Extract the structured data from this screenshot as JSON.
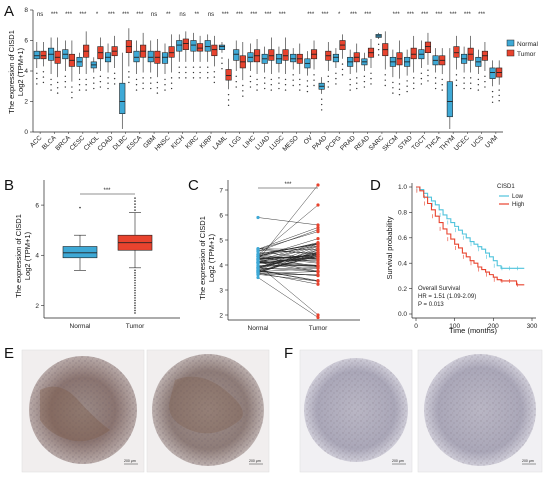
{
  "panel_labels": [
    "A",
    "B",
    "C",
    "D",
    "E",
    "F"
  ],
  "colors": {
    "normal": "#3ea9d6",
    "tumor": "#e8432e",
    "km_low": "#4fc3dc",
    "km_high": "#e8432e"
  },
  "chart_data": [
    {
      "id": "A",
      "type": "box",
      "ylabel_line1": "The expression of CISD1",
      "ylabel_line2": "Log2 (TPM+1)",
      "ylim": [
        0,
        8
      ],
      "yticks": [
        0,
        2,
        4,
        6,
        8
      ],
      "legend": [
        "Normal",
        "Tumor"
      ],
      "legend_placement": "right",
      "categories": [
        "ACC",
        "BLCA",
        "BRCA",
        "CESC",
        "CHOL",
        "COAD",
        "DLBC",
        "ESCA",
        "GBM",
        "HNSC",
        "KICH",
        "KIRC",
        "KIRP",
        "LAML",
        "LGG",
        "LIHC",
        "LUAD",
        "LUSC",
        "MESO",
        "OV",
        "PAAD",
        "PCPG",
        "PRAD",
        "READ",
        "SARC",
        "SKCM",
        "STAD",
        "TGCT",
        "THCA",
        "THYM",
        "UCEC",
        "UCS",
        "UVM"
      ],
      "significance": [
        "ns",
        "***",
        "***",
        "***",
        "*",
        "***",
        "***",
        "***",
        "ns",
        "**",
        "ns",
        "**",
        "ns",
        "***",
        "***",
        "***",
        "***",
        "***",
        "",
        "***",
        "***",
        "*",
        "***",
        "***",
        "",
        "***",
        "***",
        "***",
        "***",
        "***",
        "***",
        "***",
        ""
      ],
      "normal": [
        {
          "q1": 4.8,
          "med": 5.0,
          "q3": 5.3,
          "lo": 4.2,
          "hi": 5.9
        },
        {
          "q1": 4.7,
          "med": 5.1,
          "q3": 5.5,
          "lo": 3.8,
          "hi": 6.2
        },
        {
          "q1": 4.8,
          "med": 5.1,
          "q3": 5.4,
          "lo": 4.0,
          "hi": 6.0
        },
        {
          "q1": 4.3,
          "med": 4.6,
          "q3": 4.9,
          "lo": 3.8,
          "hi": 5.2
        },
        {
          "q1": 4.2,
          "med": 4.4,
          "q3": 4.6,
          "lo": 3.9,
          "hi": 4.9
        },
        {
          "q1": 4.6,
          "med": 4.9,
          "q3": 5.2,
          "lo": 3.9,
          "hi": 5.8
        },
        {
          "q1": 1.2,
          "med": 2.0,
          "q3": 3.2,
          "lo": 0.2,
          "hi": 5.2
        },
        {
          "q1": 4.6,
          "med": 4.9,
          "q3": 5.3,
          "lo": 3.8,
          "hi": 6.0
        },
        {
          "q1": 4.6,
          "med": 4.9,
          "q3": 5.3,
          "lo": 3.9,
          "hi": 6.0
        },
        {
          "q1": 4.5,
          "med": 4.9,
          "q3": 5.2,
          "lo": 3.8,
          "hi": 5.8
        },
        {
          "q1": 5.3,
          "med": 5.7,
          "q3": 6.0,
          "lo": 4.6,
          "hi": 6.4
        },
        {
          "q1": 5.3,
          "med": 5.7,
          "q3": 6.0,
          "lo": 4.6,
          "hi": 6.5
        },
        {
          "q1": 5.3,
          "med": 5.6,
          "q3": 6.0,
          "lo": 4.6,
          "hi": 6.4
        },
        {
          "q1": 5.4,
          "med": 5.6,
          "q3": 5.7,
          "lo": 5.2,
          "hi": 5.9
        },
        {
          "q1": 4.7,
          "med": 5.1,
          "q3": 5.4,
          "lo": 4.0,
          "hi": 6.0
        },
        {
          "q1": 4.6,
          "med": 4.9,
          "q3": 5.2,
          "lo": 4.0,
          "hi": 5.8
        },
        {
          "q1": 4.5,
          "med": 4.8,
          "q3": 5.1,
          "lo": 3.9,
          "hi": 5.6
        },
        {
          "q1": 4.5,
          "med": 4.8,
          "q3": 5.1,
          "lo": 3.9,
          "hi": 5.6
        },
        {
          "q1": 4.6,
          "med": 4.8,
          "q3": 5.1,
          "lo": 4.1,
          "hi": 5.5
        },
        {
          "q1": 4.2,
          "med": 4.5,
          "q3": 4.8,
          "lo": 3.7,
          "hi": 5.3
        },
        {
          "q1": 2.8,
          "med": 3.0,
          "q3": 3.2,
          "lo": 2.5,
          "hi": 3.6
        },
        {
          "q1": 4.6,
          "med": 4.9,
          "q3": 5.1,
          "lo": 4.2,
          "hi": 5.5
        },
        {
          "q1": 4.3,
          "med": 4.6,
          "q3": 4.9,
          "lo": 3.8,
          "hi": 5.4
        },
        {
          "q1": 4.4,
          "med": 4.6,
          "q3": 4.8,
          "lo": 4.0,
          "hi": 5.2
        },
        {
          "q1": 6.2,
          "med": 6.3,
          "q3": 6.4,
          "lo": 6.1,
          "hi": 6.5
        },
        {
          "q1": 4.3,
          "med": 4.6,
          "q3": 4.9,
          "lo": 3.6,
          "hi": 5.4
        },
        {
          "q1": 4.3,
          "med": 4.6,
          "q3": 4.9,
          "lo": 3.7,
          "hi": 5.4
        },
        {
          "q1": 4.8,
          "med": 5.1,
          "q3": 5.4,
          "lo": 4.2,
          "hi": 6.0
        },
        {
          "q1": 4.4,
          "med": 4.7,
          "q3": 5.0,
          "lo": 3.9,
          "hi": 5.5
        },
        {
          "q1": 1.0,
          "med": 2.0,
          "q3": 3.3,
          "lo": 0.2,
          "hi": 5.5
        },
        {
          "q1": 4.5,
          "med": 4.8,
          "q3": 5.1,
          "lo": 3.9,
          "hi": 5.6
        },
        {
          "q1": 4.3,
          "med": 4.6,
          "q3": 4.9,
          "lo": 3.8,
          "hi": 5.4
        },
        {
          "q1": 3.5,
          "med": 3.9,
          "q3": 4.2,
          "lo": 3.0,
          "hi": 4.7
        }
      ],
      "tumor": [
        {
          "q1": 4.8,
          "med": 5.0,
          "q3": 5.3,
          "lo": 4.3,
          "hi": 5.9
        },
        {
          "q1": 4.5,
          "med": 4.9,
          "q3": 5.3,
          "lo": 3.6,
          "hi": 6.2
        },
        {
          "q1": 4.3,
          "med": 4.7,
          "q3": 5.1,
          "lo": 3.3,
          "hi": 6.0
        },
        {
          "q1": 4.9,
          "med": 5.3,
          "q3": 5.7,
          "lo": 3.8,
          "hi": 6.6
        },
        {
          "q1": 4.8,
          "med": 5.2,
          "q3": 5.6,
          "lo": 4.0,
          "hi": 6.2
        },
        {
          "q1": 5.0,
          "med": 5.3,
          "q3": 5.6,
          "lo": 4.2,
          "hi": 6.3
        },
        {
          "q1": 5.2,
          "med": 5.6,
          "q3": 6.0,
          "lo": 4.3,
          "hi": 6.8
        },
        {
          "q1": 4.9,
          "med": 5.3,
          "q3": 5.7,
          "lo": 3.9,
          "hi": 6.5
        },
        {
          "q1": 4.5,
          "med": 4.9,
          "q3": 5.3,
          "lo": 3.6,
          "hi": 6.1
        },
        {
          "q1": 4.9,
          "med": 5.2,
          "q3": 5.6,
          "lo": 3.9,
          "hi": 6.4
        },
        {
          "q1": 5.4,
          "med": 5.8,
          "q3": 6.1,
          "lo": 4.6,
          "hi": 6.6
        },
        {
          "q1": 5.3,
          "med": 5.5,
          "q3": 5.8,
          "lo": 4.6,
          "hi": 6.3
        },
        {
          "q1": 5.0,
          "med": 5.4,
          "q3": 5.7,
          "lo": 4.3,
          "hi": 6.3
        },
        {
          "q1": 3.4,
          "med": 3.7,
          "q3": 4.1,
          "lo": 2.8,
          "hi": 4.8
        },
        {
          "q1": 4.2,
          "med": 4.6,
          "q3": 5.0,
          "lo": 3.4,
          "hi": 5.9
        },
        {
          "q1": 4.6,
          "med": 5.0,
          "q3": 5.4,
          "lo": 3.8,
          "hi": 6.1
        },
        {
          "q1": 4.7,
          "med": 5.0,
          "q3": 5.4,
          "lo": 3.8,
          "hi": 6.2
        },
        {
          "q1": 4.7,
          "med": 5.0,
          "q3": 5.4,
          "lo": 3.8,
          "hi": 6.2
        },
        {
          "q1": 4.5,
          "med": 4.8,
          "q3": 5.1,
          "lo": 3.8,
          "hi": 5.8
        },
        {
          "q1": 4.8,
          "med": 5.1,
          "q3": 5.4,
          "lo": 4.1,
          "hi": 6.0
        },
        {
          "q1": 4.7,
          "med": 5.0,
          "q3": 5.3,
          "lo": 4.0,
          "hi": 5.9
        },
        {
          "q1": 5.4,
          "med": 5.7,
          "q3": 6.0,
          "lo": 4.8,
          "hi": 6.4
        },
        {
          "q1": 4.6,
          "med": 4.9,
          "q3": 5.2,
          "lo": 3.9,
          "hi": 5.8
        },
        {
          "q1": 4.9,
          "med": 5.2,
          "q3": 5.5,
          "lo": 4.2,
          "hi": 6.1
        },
        {
          "q1": 5.0,
          "med": 5.4,
          "q3": 5.8,
          "lo": 4.1,
          "hi": 6.6
        },
        {
          "q1": 4.4,
          "med": 4.8,
          "q3": 5.2,
          "lo": 3.5,
          "hi": 6.0
        },
        {
          "q1": 4.8,
          "med": 5.1,
          "q3": 5.5,
          "lo": 3.9,
          "hi": 6.3
        },
        {
          "q1": 5.2,
          "med": 5.6,
          "q3": 5.9,
          "lo": 4.4,
          "hi": 6.5
        },
        {
          "q1": 4.4,
          "med": 4.7,
          "q3": 5.0,
          "lo": 3.8,
          "hi": 5.5
        },
        {
          "q1": 4.9,
          "med": 5.2,
          "q3": 5.6,
          "lo": 4.1,
          "hi": 6.3
        },
        {
          "q1": 4.7,
          "med": 5.1,
          "q3": 5.5,
          "lo": 3.9,
          "hi": 6.3
        },
        {
          "q1": 4.7,
          "med": 5.0,
          "q3": 5.3,
          "lo": 4.0,
          "hi": 5.9
        },
        {
          "q1": 3.6,
          "med": 3.9,
          "q3": 4.2,
          "lo": 3.1,
          "hi": 4.7
        }
      ]
    },
    {
      "id": "B",
      "type": "box",
      "ylabel_line1": "The expression of CISD1",
      "ylabel_line2": "Log2 (TPM+1)",
      "ylim": [
        1.5,
        7
      ],
      "yticks": [
        2,
        4,
        6
      ],
      "categories": [
        "Normal",
        "Tumor"
      ],
      "significance": "***",
      "boxes": [
        {
          "q1": 3.9,
          "med": 4.1,
          "q3": 4.35,
          "lo": 3.4,
          "hi": 4.8
        },
        {
          "q1": 4.2,
          "med": 4.5,
          "q3": 4.8,
          "lo": 3.5,
          "hi": 5.7
        }
      ]
    },
    {
      "id": "C",
      "type": "paired",
      "ylabel_line1": "The expression of CISD1",
      "ylabel_line2": "Log2 (TPM+1)",
      "ylim": [
        1.8,
        7.4
      ],
      "yticks": [
        2,
        3,
        4,
        5,
        6,
        7
      ],
      "categories": [
        "Normal",
        "Tumor"
      ],
      "significance": "***"
    },
    {
      "id": "D",
      "type": "line",
      "xlabel": "Time (months)",
      "ylabel": "Survival probability",
      "xlim": [
        0,
        300
      ],
      "xticks": [
        0,
        100,
        200,
        300
      ],
      "ylim": [
        0,
        1
      ],
      "yticks": [
        0.0,
        0.2,
        0.4,
        0.6,
        0.8,
        1.0
      ],
      "legend_title": "CISD1",
      "legend": [
        "Low",
        "High"
      ],
      "legend_placement": "top-right",
      "annotation": [
        "Overall Survival",
        "HR = 1.51 (1.09-2.09)",
        "P = 0.013"
      ],
      "series": [
        {
          "name": "Low",
          "x": [
            0,
            10,
            20,
            30,
            40,
            50,
            60,
            70,
            80,
            90,
            100,
            110,
            120,
            130,
            140,
            150,
            160,
            170,
            180,
            190,
            200,
            210,
            220,
            230,
            240,
            250,
            260,
            270,
            280
          ],
          "y": [
            1.0,
            0.98,
            0.95,
            0.92,
            0.89,
            0.86,
            0.82,
            0.78,
            0.75,
            0.72,
            0.69,
            0.66,
            0.63,
            0.6,
            0.57,
            0.55,
            0.53,
            0.51,
            0.48,
            0.45,
            0.42,
            0.38,
            0.36,
            0.36,
            0.36,
            0.36,
            0.36,
            0.36,
            0.36
          ]
        },
        {
          "name": "High",
          "x": [
            0,
            10,
            20,
            30,
            40,
            50,
            60,
            70,
            80,
            90,
            100,
            110,
            120,
            130,
            140,
            150,
            160,
            170,
            180,
            190,
            200,
            210,
            220,
            230,
            240,
            250,
            260,
            270,
            280
          ],
          "y": [
            1.0,
            0.97,
            0.92,
            0.87,
            0.82,
            0.77,
            0.72,
            0.67,
            0.63,
            0.59,
            0.55,
            0.52,
            0.48,
            0.45,
            0.42,
            0.4,
            0.37,
            0.35,
            0.33,
            0.31,
            0.29,
            0.27,
            0.26,
            0.26,
            0.26,
            0.26,
            0.23,
            0.23,
            0.23
          ]
        }
      ]
    }
  ],
  "images": {
    "E": [
      {
        "scale": "200 μm"
      },
      {
        "scale": "200 μm"
      }
    ],
    "F": [
      {
        "scale": "200 μm"
      },
      {
        "scale": "200 μm"
      }
    ]
  }
}
